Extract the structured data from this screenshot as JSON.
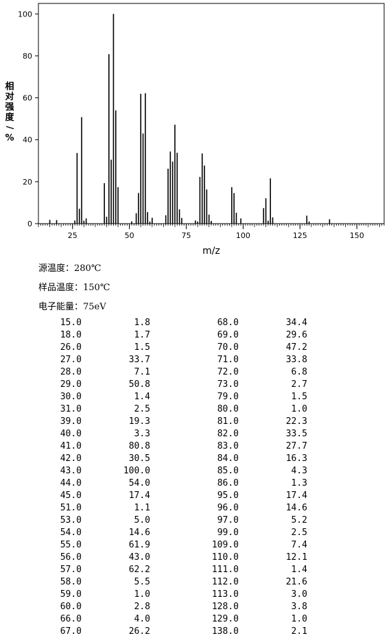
{
  "chart_data": {
    "type": "bar",
    "xlabel": "m/z",
    "ylabel": "相对强度/%",
    "xlim": [
      10,
      162
    ],
    "ylim": [
      0,
      105
    ],
    "x_ticks": [
      25,
      50,
      75,
      100,
      125,
      150
    ],
    "y_ticks": [
      0,
      20,
      40,
      60,
      80,
      100
    ],
    "grid": false,
    "peaks": [
      {
        "mz": 15.0,
        "intensity": 1.8
      },
      {
        "mz": 18.0,
        "intensity": 1.7
      },
      {
        "mz": 26.0,
        "intensity": 1.5
      },
      {
        "mz": 27.0,
        "intensity": 33.7
      },
      {
        "mz": 28.0,
        "intensity": 7.1
      },
      {
        "mz": 29.0,
        "intensity": 50.8
      },
      {
        "mz": 30.0,
        "intensity": 1.4
      },
      {
        "mz": 31.0,
        "intensity": 2.5
      },
      {
        "mz": 39.0,
        "intensity": 19.3
      },
      {
        "mz": 40.0,
        "intensity": 3.3
      },
      {
        "mz": 41.0,
        "intensity": 80.8
      },
      {
        "mz": 42.0,
        "intensity": 30.5
      },
      {
        "mz": 43.0,
        "intensity": 100.0
      },
      {
        "mz": 44.0,
        "intensity": 54.0
      },
      {
        "mz": 45.0,
        "intensity": 17.4
      },
      {
        "mz": 51.0,
        "intensity": 1.1
      },
      {
        "mz": 53.0,
        "intensity": 5.0
      },
      {
        "mz": 54.0,
        "intensity": 14.6
      },
      {
        "mz": 55.0,
        "intensity": 61.9
      },
      {
        "mz": 56.0,
        "intensity": 43.0
      },
      {
        "mz": 57.0,
        "intensity": 62.2
      },
      {
        "mz": 58.0,
        "intensity": 5.5
      },
      {
        "mz": 59.0,
        "intensity": 1.0
      },
      {
        "mz": 60.0,
        "intensity": 2.8
      },
      {
        "mz": 66.0,
        "intensity": 4.0
      },
      {
        "mz": 67.0,
        "intensity": 26.2
      },
      {
        "mz": 68.0,
        "intensity": 34.4
      },
      {
        "mz": 69.0,
        "intensity": 29.6
      },
      {
        "mz": 70.0,
        "intensity": 47.2
      },
      {
        "mz": 71.0,
        "intensity": 33.8
      },
      {
        "mz": 72.0,
        "intensity": 6.8
      },
      {
        "mz": 73.0,
        "intensity": 2.7
      },
      {
        "mz": 79.0,
        "intensity": 1.5
      },
      {
        "mz": 80.0,
        "intensity": 1.0
      },
      {
        "mz": 81.0,
        "intensity": 22.3
      },
      {
        "mz": 82.0,
        "intensity": 33.5
      },
      {
        "mz": 83.0,
        "intensity": 27.7
      },
      {
        "mz": 84.0,
        "intensity": 16.3
      },
      {
        "mz": 85.0,
        "intensity": 4.3
      },
      {
        "mz": 86.0,
        "intensity": 1.3
      },
      {
        "mz": 95.0,
        "intensity": 17.4
      },
      {
        "mz": 96.0,
        "intensity": 14.6
      },
      {
        "mz": 97.0,
        "intensity": 5.2
      },
      {
        "mz": 99.0,
        "intensity": 2.5
      },
      {
        "mz": 109.0,
        "intensity": 7.4
      },
      {
        "mz": 110.0,
        "intensity": 12.1
      },
      {
        "mz": 111.0,
        "intensity": 1.4
      },
      {
        "mz": 112.0,
        "intensity": 21.6
      },
      {
        "mz": 113.0,
        "intensity": 3.0
      },
      {
        "mz": 128.0,
        "intensity": 3.8
      },
      {
        "mz": 129.0,
        "intensity": 1.0
      },
      {
        "mz": 138.0,
        "intensity": 2.1
      }
    ]
  },
  "conditions": {
    "source_temp": "源温度：280℃",
    "sample_temp": "样品温度：150℃",
    "electron_energy": "电子能量：75eV"
  },
  "table": {
    "left": [
      [
        "15.0",
        "1.8"
      ],
      [
        "18.0",
        "1.7"
      ],
      [
        "26.0",
        "1.5"
      ],
      [
        "27.0",
        "33.7"
      ],
      [
        "28.0",
        "7.1"
      ],
      [
        "29.0",
        "50.8"
      ],
      [
        "30.0",
        "1.4"
      ],
      [
        "31.0",
        "2.5"
      ],
      [
        "39.0",
        "19.3"
      ],
      [
        "40.0",
        "3.3"
      ],
      [
        "41.0",
        "80.8"
      ],
      [
        "42.0",
        "30.5"
      ],
      [
        "43.0",
        "100.0"
      ],
      [
        "44.0",
        "54.0"
      ],
      [
        "45.0",
        "17.4"
      ],
      [
        "51.0",
        "1.1"
      ],
      [
        "53.0",
        "5.0"
      ],
      [
        "54.0",
        "14.6"
      ],
      [
        "55.0",
        "61.9"
      ],
      [
        "56.0",
        "43.0"
      ],
      [
        "57.0",
        "62.2"
      ],
      [
        "58.0",
        "5.5"
      ],
      [
        "59.0",
        "1.0"
      ],
      [
        "60.0",
        "2.8"
      ],
      [
        "66.0",
        "4.0"
      ],
      [
        "67.0",
        "26.2"
      ]
    ],
    "right": [
      [
        "68.0",
        "34.4"
      ],
      [
        "69.0",
        "29.6"
      ],
      [
        "70.0",
        "47.2"
      ],
      [
        "71.0",
        "33.8"
      ],
      [
        "72.0",
        "6.8"
      ],
      [
        "73.0",
        "2.7"
      ],
      [
        "79.0",
        "1.5"
      ],
      [
        "80.0",
        "1.0"
      ],
      [
        "81.0",
        "22.3"
      ],
      [
        "82.0",
        "33.5"
      ],
      [
        "83.0",
        "27.7"
      ],
      [
        "84.0",
        "16.3"
      ],
      [
        "85.0",
        "4.3"
      ],
      [
        "86.0",
        "1.3"
      ],
      [
        "95.0",
        "17.4"
      ],
      [
        "96.0",
        "14.6"
      ],
      [
        "97.0",
        "5.2"
      ],
      [
        "99.0",
        "2.5"
      ],
      [
        "109.0",
        "7.4"
      ],
      [
        "110.0",
        "12.1"
      ],
      [
        "111.0",
        "1.4"
      ],
      [
        "112.0",
        "21.6"
      ],
      [
        "113.0",
        "3.0"
      ],
      [
        "128.0",
        "3.8"
      ],
      [
        "129.0",
        "1.0"
      ],
      [
        "138.0",
        "2.1"
      ]
    ]
  }
}
